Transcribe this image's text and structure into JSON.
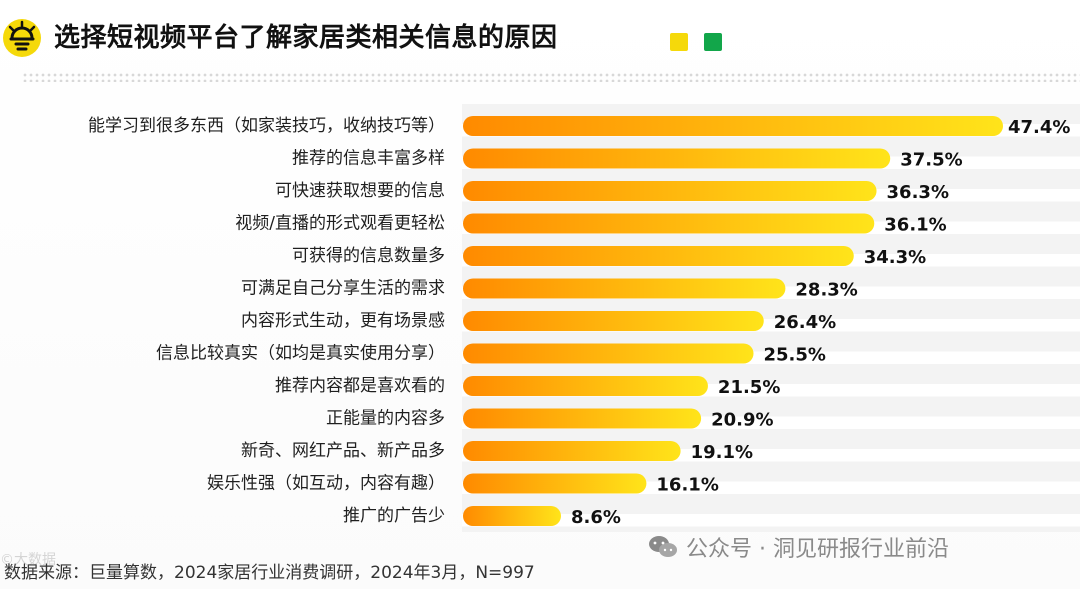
{
  "header": {
    "title": "选择短视频平台了解家居类相关信息的原因",
    "accent_colors": {
      "yellow": "#f5d90a",
      "green": "#12a64a",
      "bar_start": "#ff8a00",
      "bar_end": "#ffe41a"
    }
  },
  "chart_data": {
    "type": "bar",
    "orientation": "horizontal",
    "categories": [
      "能学习到很多东西（如家装技巧，收纳技巧等）",
      "推荐的信息丰富多样",
      "可快速获取想要的信息",
      "视频/直播的形式观看更轻松",
      "可获得的信息数量多",
      "可满足自己分享生活的需求",
      "内容形式生动，更有场景感",
      "信息比较真实（如均是真实使用分享）",
      "推荐内容都是喜欢看的",
      "正能量的内容多",
      "新奇、网红产品、新产品多",
      "娱乐性强（如互动，内容有趣）",
      "推广的广告少"
    ],
    "values": [
      47.4,
      37.5,
      36.3,
      36.1,
      34.3,
      28.3,
      26.4,
      25.5,
      21.5,
      20.9,
      19.1,
      16.1,
      8.6
    ],
    "value_labels": [
      "47.4%",
      "37.5%",
      "36.3%",
      "36.1%",
      "34.3%",
      "28.3%",
      "26.4%",
      "25.5%",
      "21.5%",
      "20.9%",
      "19.1%",
      "16.1%",
      "8.6%"
    ],
    "xlim": [
      0,
      47.4
    ],
    "grid": false,
    "legend": "none"
  },
  "footer": {
    "source": "数据来源：巨量算数，2024家居行业消费调研，2024年3月，N=997",
    "watermark": "公众号 · 洞见研报行业前沿",
    "faded_mark": "©大数据",
    "watermark_icon": "wechat-icon"
  }
}
